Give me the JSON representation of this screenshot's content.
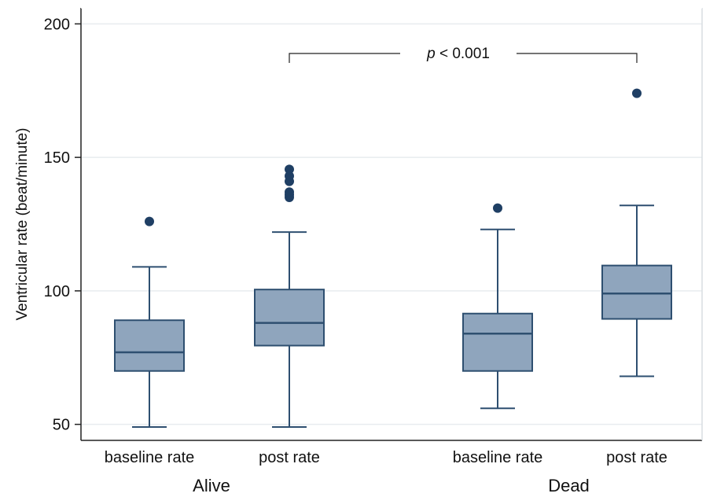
{
  "chart_data": {
    "type": "box",
    "title": "",
    "ylabel": "Ventricular rate (beat/minute)",
    "ylim": [
      44,
      206
    ],
    "yticks": [
      50,
      100,
      150,
      200
    ],
    "grid": true,
    "groups": [
      "Alive",
      "Dead"
    ],
    "boxes": [
      {
        "group": "Alive",
        "label": "baseline rate",
        "whisker_low": 49,
        "q1": 70,
        "median": 77,
        "q3": 89,
        "whisker_high": 109,
        "outliers": [
          126
        ]
      },
      {
        "group": "Alive",
        "label": "post rate",
        "whisker_low": 49,
        "q1": 79.5,
        "median": 88,
        "q3": 100.5,
        "whisker_high": 122,
        "outliers": [
          135,
          136,
          137,
          141,
          143,
          145.5
        ]
      },
      {
        "group": "Dead",
        "label": "baseline rate",
        "whisker_low": 56,
        "q1": 70,
        "median": 84,
        "q3": 91.5,
        "whisker_high": 123,
        "outliers": [
          131
        ]
      },
      {
        "group": "Dead",
        "label": "post rate",
        "whisker_low": 68,
        "q1": 89.5,
        "median": 99,
        "q3": 109.5,
        "whisker_high": 132,
        "outliers": [
          174
        ]
      }
    ],
    "annotation": {
      "italic": "p",
      "text": " < 0.001",
      "from_box": 1,
      "to_box": 3
    },
    "colors": {
      "box_fill": "#8fa5bd",
      "box_stroke": "#2e4f70",
      "outlier": "#1f3f64",
      "grid": "#e8ecef",
      "axis": "#222222"
    }
  }
}
